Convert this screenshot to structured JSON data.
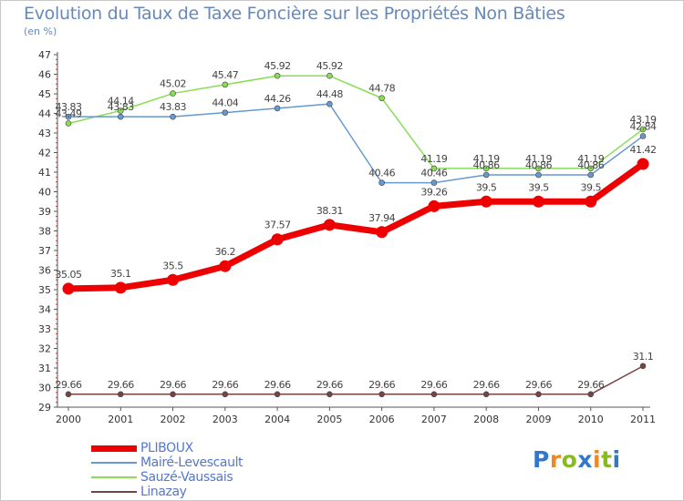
{
  "title": "Evolution du Taux de Taxe Foncière sur les Propriétés Non Bâties",
  "subtitle": "(en %)",
  "logo": {
    "letters": [
      "P",
      "r",
      "o",
      "x",
      "i",
      "t",
      "i"
    ],
    "colors": [
      "#3377cc",
      "#ee8822",
      "#88bb22",
      "#3377cc",
      "#ee8822",
      "#88bb22",
      "#3377cc"
    ]
  },
  "chart_data": {
    "type": "line",
    "title": "Evolution du Taux de Taxe Foncière sur les Propriétés Non Bâties",
    "ylabel": "(en %)",
    "xlabel": "",
    "categories": [
      "2000",
      "2001",
      "2002",
      "2003",
      "2004",
      "2005",
      "2006",
      "2007",
      "2008",
      "2009",
      "2010",
      "2011"
    ],
    "yticks": [
      "29",
      "30",
      "31",
      "32",
      "33",
      "34",
      "35",
      "36",
      "37",
      "38",
      "39",
      "40",
      "41",
      "42",
      "43",
      "44",
      "45",
      "46",
      "47"
    ],
    "ylim": [
      29,
      47
    ],
    "grid": false,
    "legend_position": "bottom-left",
    "series": [
      {
        "name": "PLIBOUX",
        "color": "#ee0000",
        "values": [
          35.05,
          35.1,
          35.5,
          36.2,
          37.57,
          38.31,
          37.94,
          39.26,
          39.5,
          39.5,
          39.5,
          41.42
        ],
        "labels": [
          "35.05",
          "35.1",
          "35.5",
          "36.2",
          "37.57",
          "38.31",
          "37.94",
          "39.26",
          "39.5",
          "39.5",
          "39.5",
          "41.42"
        ]
      },
      {
        "name": "Mairé-Levescault",
        "color": "#6699cc",
        "values": [
          43.83,
          43.83,
          43.83,
          44.04,
          44.26,
          44.48,
          40.46,
          40.46,
          40.86,
          40.86,
          40.86,
          42.84
        ],
        "labels": [
          "43.83",
          "43.83",
          "43.83",
          "44.04",
          "44.26",
          "44.48",
          "40.46",
          "40.46",
          "40.86",
          "40.86",
          "40.86",
          "42.84"
        ]
      },
      {
        "name": "Sauzé-Vaussais",
        "color": "#88dd55",
        "values": [
          43.49,
          44.14,
          45.02,
          45.47,
          45.92,
          45.92,
          44.78,
          41.19,
          41.19,
          41.19,
          41.19,
          43.19
        ],
        "labels": [
          "43.49",
          "44.14",
          "45.02",
          "45.47",
          "45.92",
          "45.92",
          "44.78",
          "41.19",
          "41.19",
          "41.19",
          "41.19",
          "43.19"
        ]
      },
      {
        "name": "Linazay",
        "color": "#774444",
        "values": [
          29.66,
          29.66,
          29.66,
          29.66,
          29.66,
          29.66,
          29.66,
          29.66,
          29.66,
          29.66,
          29.66,
          31.1
        ],
        "labels": [
          "29.66",
          "29.66",
          "29.66",
          "29.66",
          "29.66",
          "29.66",
          "29.66",
          "29.66",
          "29.66",
          "29.66",
          "29.66",
          "31.1"
        ]
      }
    ]
  }
}
